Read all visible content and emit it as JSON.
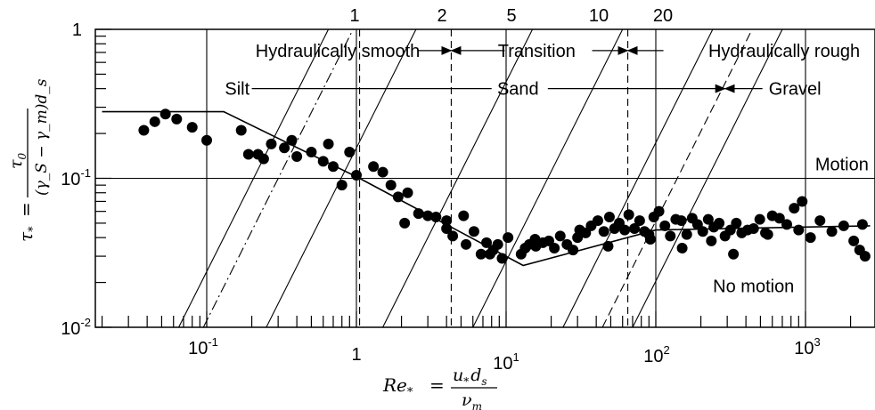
{
  "chart_data": {
    "type": "scatter",
    "xscale": "log",
    "yscale": "log",
    "xlim": [
      0.02,
      2700
    ],
    "ylim": [
      0.01,
      1
    ],
    "x_ticks": [
      {
        "value": 0.1,
        "mantissa": "10",
        "exponent": "-1"
      },
      {
        "value": 1,
        "mantissa": "1",
        "exponent": ""
      },
      {
        "value": 10,
        "mantissa": "10",
        "exponent": "1"
      },
      {
        "value": 100,
        "mantissa": "10",
        "exponent": "2"
      },
      {
        "value": 1000,
        "mantissa": "10",
        "exponent": "3"
      }
    ],
    "y_ticks": [
      {
        "value": 0.01,
        "mantissa": "10",
        "exponent": "-2"
      },
      {
        "value": 0.1,
        "mantissa": "10",
        "exponent": "-1"
      },
      {
        "value": 1,
        "mantissa": "1",
        "exponent": ""
      }
    ],
    "xlabel": {
      "lhs": "Re",
      "lhs_sub": "*",
      "eq": "=",
      "num": "u",
      "num_sub1": "*",
      "num_mid": "d",
      "num_sub2": "s",
      "den": "ν",
      "den_sub": "m"
    },
    "ylabel": {
      "lhs": "τ",
      "lhs_sub": "*",
      "eq": "=",
      "num": "τ",
      "num_sub": "0",
      "den": "(γ_S − γ_m)d_s"
    },
    "vertical_gridlines": [
      0.1,
      1,
      10,
      100,
      1000
    ],
    "horizontal_gridlines": [
      0.1
    ],
    "dashed_verticals": [
      1.05,
      4.3,
      65
    ],
    "grain_size_lines": [
      {
        "label": "1",
        "style": "solid",
        "x_at_bottom": 0.065
      },
      {
        "label": "",
        "style": "dashdot",
        "x_at_bottom": 0.095
      },
      {
        "label": "2",
        "style": "solid",
        "x_at_bottom": 0.25
      },
      {
        "label": "5",
        "style": "solid",
        "x_at_bottom": 1.5
      },
      {
        "label": "10",
        "style": "solid",
        "x_at_bottom": 6.0
      },
      {
        "label": "20",
        "style": "solid",
        "x_at_bottom": 24.0
      },
      {
        "label": "",
        "style": "dashed",
        "x_at_bottom": 44.0
      },
      {
        "label": "",
        "style": "solid",
        "x_at_bottom": 70.0
      }
    ],
    "criterion_curve": {
      "x": [
        0.02,
        0.13,
        1.05,
        13,
        100,
        2700
      ],
      "y": [
        0.28,
        0.28,
        0.1,
        0.026,
        0.045,
        0.048
      ]
    },
    "points": {
      "x": [
        0.038,
        0.045,
        0.053,
        0.063,
        0.08,
        0.1,
        0.17,
        0.19,
        0.22,
        0.24,
        0.27,
        0.33,
        0.37,
        0.4,
        0.5,
        0.6,
        0.7,
        0.8,
        0.9,
        1.0,
        0.65,
        1.3,
        1.5,
        1.7,
        1.9,
        2.2,
        2.6,
        3.0,
        3.4,
        4.0,
        4.4,
        5.2,
        6.1,
        6.8,
        7.4,
        7.8,
        8.2,
        8.8,
        9.4,
        10.3,
        12.6,
        13.4,
        14.3,
        15.8,
        17.6,
        19.3,
        21,
        23,
        25.5,
        28,
        31,
        34,
        37,
        41,
        45,
        49,
        53,
        57,
        62,
        66,
        72,
        78,
        84,
        90,
        97,
        105,
        115,
        125,
        136,
        148,
        161,
        175,
        190,
        206,
        224,
        244,
        265,
        290,
        315,
        345,
        375,
        410,
        450,
        495,
        540,
        600,
        670,
        750,
        840,
        950,
        1080,
        1250,
        1500,
        1800,
        2100,
        2400,
        4.0,
        5.4,
        2.1,
        15.6,
        30,
        48,
        92,
        150,
        235,
        330,
        560,
        900,
        2500,
        2300
      ],
      "y": [
        0.21,
        0.24,
        0.27,
        0.25,
        0.22,
        0.18,
        0.21,
        0.145,
        0.145,
        0.135,
        0.17,
        0.16,
        0.18,
        0.14,
        0.15,
        0.13,
        0.12,
        0.09,
        0.15,
        0.105,
        0.17,
        0.12,
        0.11,
        0.09,
        0.075,
        0.08,
        0.058,
        0.056,
        0.055,
        0.052,
        0.041,
        0.056,
        0.044,
        0.031,
        0.037,
        0.031,
        0.033,
        0.036,
        0.029,
        0.04,
        0.031,
        0.034,
        0.036,
        0.035,
        0.037,
        0.038,
        0.034,
        0.041,
        0.036,
        0.033,
        0.045,
        0.043,
        0.048,
        0.052,
        0.044,
        0.055,
        0.046,
        0.05,
        0.045,
        0.057,
        0.046,
        0.052,
        0.044,
        0.042,
        0.055,
        0.06,
        0.048,
        0.041,
        0.053,
        0.052,
        0.042,
        0.054,
        0.049,
        0.044,
        0.053,
        0.047,
        0.05,
        0.041,
        0.045,
        0.05,
        0.043,
        0.045,
        0.046,
        0.053,
        0.043,
        0.056,
        0.054,
        0.049,
        0.063,
        0.07,
        0.04,
        0.052,
        0.044,
        0.048,
        0.038,
        0.049,
        0.046,
        0.036,
        0.05,
        0.039,
        0.04,
        0.035,
        0.039,
        0.034,
        0.038,
        0.031,
        0.042,
        0.045,
        0.03,
        0.033
      ]
    },
    "annotations": [
      {
        "text": "Hydraulically smooth",
        "x": 0.75,
        "y": 0.72
      },
      {
        "text": "Transition",
        "x": 16,
        "y": 0.72
      },
      {
        "text": "Hydraulically rough",
        "x": 720,
        "y": 0.72
      },
      {
        "text": "Silt",
        "x": 0.16,
        "y": 0.4
      },
      {
        "text": "Sand",
        "x": 12,
        "y": 0.4
      },
      {
        "text": "Gravel",
        "x": 850,
        "y": 0.4
      },
      {
        "text": "Motion",
        "x": 1750,
        "y": 0.125
      },
      {
        "text": "No motion",
        "x": 450,
        "y": 0.019
      }
    ]
  }
}
